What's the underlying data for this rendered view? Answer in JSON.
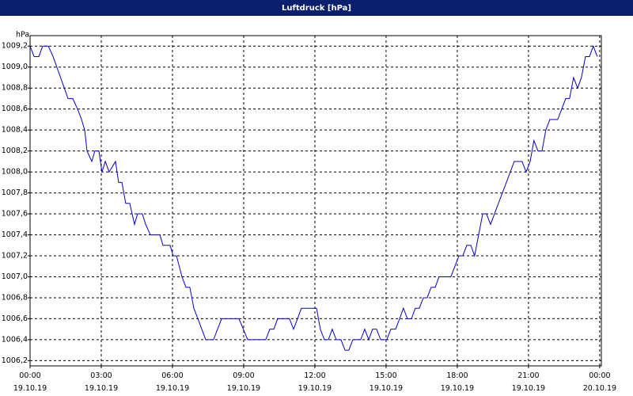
{
  "chart_data": {
    "type": "line",
    "title": "Luftdruck [hPa]",
    "y_label": "hPa",
    "xlim": [
      0,
      24.07
    ],
    "ylim": [
      1006.15,
      1009.3
    ],
    "grid": true,
    "xticks": [
      {
        "value": 0,
        "label": "00:00 19.10.19"
      },
      {
        "value": 3,
        "label": "03:00 19.10.19"
      },
      {
        "value": 6,
        "label": "06:00 19.10.19"
      },
      {
        "value": 9,
        "label": "09:00 19.10.19"
      },
      {
        "value": 12,
        "label": "12:00 19.10.19"
      },
      {
        "value": 15,
        "label": "15:00 19.10.19"
      },
      {
        "value": 18,
        "label": "18:00 19.10.19"
      },
      {
        "value": 21,
        "label": "21:00 19.10.19"
      },
      {
        "value": 24,
        "label": "00:00 20.10.19"
      }
    ],
    "yticks": [
      {
        "value": 1006.2,
        "label": "1006,2"
      },
      {
        "value": 1006.4,
        "label": "1006,4"
      },
      {
        "value": 1006.6,
        "label": "1006,6"
      },
      {
        "value": 1006.8,
        "label": "1006,8"
      },
      {
        "value": 1007.0,
        "label": "1007,0"
      },
      {
        "value": 1007.2,
        "label": "1007,2"
      },
      {
        "value": 1007.4,
        "label": "1007,4"
      },
      {
        "value": 1007.6,
        "label": "1007,6"
      },
      {
        "value": 1007.8,
        "label": "1007,8"
      },
      {
        "value": 1008.0,
        "label": "1008,0"
      },
      {
        "value": 1008.2,
        "label": "1008,2"
      },
      {
        "value": 1008.4,
        "label": "1008,4"
      },
      {
        "value": 1008.6,
        "label": "1008,6"
      },
      {
        "value": 1008.8,
        "label": "1008,8"
      },
      {
        "value": 1009.0,
        "label": "1009,0"
      },
      {
        "value": 1009.2,
        "label": "1009,2"
      }
    ],
    "series": [
      {
        "color": "#0000cc",
        "x": [
          0,
          0.17,
          0.37,
          0.53,
          0.77,
          0.97,
          1.6,
          1.8,
          2.0,
          2.17,
          2.3,
          2.4,
          2.6,
          2.73,
          2.9,
          3.03,
          3.17,
          3.33,
          3.6,
          3.73,
          3.87,
          4.03,
          4.2,
          4.4,
          4.53,
          4.73,
          4.87,
          5.07,
          5.47,
          5.6,
          5.9,
          6.03,
          6.17,
          6.4,
          6.57,
          6.73,
          6.9,
          7.07,
          7.4,
          7.73,
          8.07,
          8.8,
          9.17,
          9.93,
          10.1,
          10.27,
          10.43,
          10.93,
          11.1,
          11.27,
          11.43,
          12.07,
          12.23,
          12.4,
          12.57,
          12.73,
          12.9,
          13.1,
          13.27,
          13.43,
          13.6,
          13.93,
          14.1,
          14.27,
          14.43,
          14.6,
          14.77,
          15.03,
          15.2,
          15.4,
          15.57,
          15.73,
          15.9,
          16.07,
          16.23,
          16.4,
          16.57,
          16.73,
          16.9,
          17.07,
          17.23,
          17.73,
          17.9,
          18.07,
          18.23,
          18.4,
          18.57,
          18.73,
          18.9,
          19.07,
          19.23,
          19.4,
          20.4,
          20.73,
          20.9,
          21.07,
          21.23,
          21.4,
          21.57,
          21.73,
          21.9,
          22.23,
          22.4,
          22.57,
          22.73,
          22.9,
          23.07,
          23.23,
          23.4,
          23.57,
          23.73,
          23.9
        ],
        "values": [
          1009.2,
          1009.1,
          1009.1,
          1009.2,
          1009.2,
          1009.1,
          1008.7,
          1008.7,
          1008.6,
          1008.5,
          1008.4,
          1008.2,
          1008.1,
          1008.2,
          1008.2,
          1008.0,
          1008.1,
          1008.0,
          1008.1,
          1007.9,
          1007.9,
          1007.7,
          1007.7,
          1007.5,
          1007.6,
          1007.6,
          1007.5,
          1007.4,
          1007.4,
          1007.3,
          1007.3,
          1007.2,
          1007.2,
          1007.0,
          1006.9,
          1006.9,
          1006.7,
          1006.6,
          1006.4,
          1006.4,
          1006.6,
          1006.6,
          1006.4,
          1006.4,
          1006.5,
          1006.5,
          1006.6,
          1006.6,
          1006.5,
          1006.6,
          1006.7,
          1006.7,
          1006.5,
          1006.4,
          1006.4,
          1006.5,
          1006.4,
          1006.4,
          1006.3,
          1006.3,
          1006.4,
          1006.4,
          1006.5,
          1006.4,
          1006.5,
          1006.5,
          1006.4,
          1006.4,
          1006.5,
          1006.5,
          1006.6,
          1006.7,
          1006.6,
          1006.6,
          1006.7,
          1006.7,
          1006.8,
          1006.8,
          1006.9,
          1006.9,
          1007.0,
          1007.0,
          1007.1,
          1007.2,
          1007.2,
          1007.3,
          1007.3,
          1007.2,
          1007.4,
          1007.6,
          1007.6,
          1007.5,
          1008.1,
          1008.1,
          1008.0,
          1008.1,
          1008.3,
          1008.2,
          1008.2,
          1008.4,
          1008.5,
          1008.5,
          1008.6,
          1008.7,
          1008.7,
          1008.9,
          1008.8,
          1008.9,
          1009.1,
          1009.1,
          1009.2,
          1009.1
        ]
      }
    ]
  }
}
